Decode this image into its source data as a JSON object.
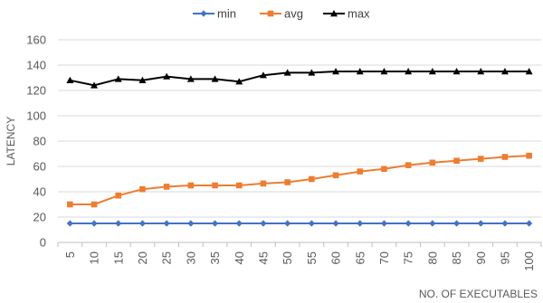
{
  "chart_data": {
    "type": "line",
    "xlabel": "NO. OF EXECUTABLES",
    "ylabel": "LATENCY",
    "ylim": [
      0,
      160
    ],
    "yticks": [
      0,
      20,
      40,
      60,
      80,
      100,
      120,
      140,
      160
    ],
    "grid": true,
    "legend_position": "top",
    "categories": [
      "5",
      "10",
      "15",
      "20",
      "25",
      "30",
      "35",
      "40",
      "45",
      "50",
      "55",
      "60",
      "65",
      "70",
      "75",
      "80",
      "85",
      "90",
      "95",
      "100"
    ],
    "series": [
      {
        "name": "min",
        "color": "#4472C4",
        "marker": "diamond",
        "values": [
          15,
          15,
          15,
          15,
          15,
          15,
          15,
          15,
          15,
          15,
          15,
          15,
          15,
          15,
          15,
          15,
          15,
          15,
          15,
          15
        ]
      },
      {
        "name": "avg",
        "color": "#ED7D31",
        "marker": "square",
        "values": [
          30,
          30,
          37,
          42,
          44,
          45,
          45,
          45,
          46.5,
          47.5,
          50,
          53,
          56,
          58,
          61,
          63,
          64.5,
          66,
          67.5,
          68.5
        ]
      },
      {
        "name": "max",
        "color": "#000000",
        "marker": "triangle",
        "values": [
          128,
          124,
          129,
          128,
          131,
          129,
          129,
          127,
          132,
          134,
          134,
          135,
          135,
          135,
          135,
          135,
          135,
          135,
          135,
          135
        ]
      }
    ]
  }
}
